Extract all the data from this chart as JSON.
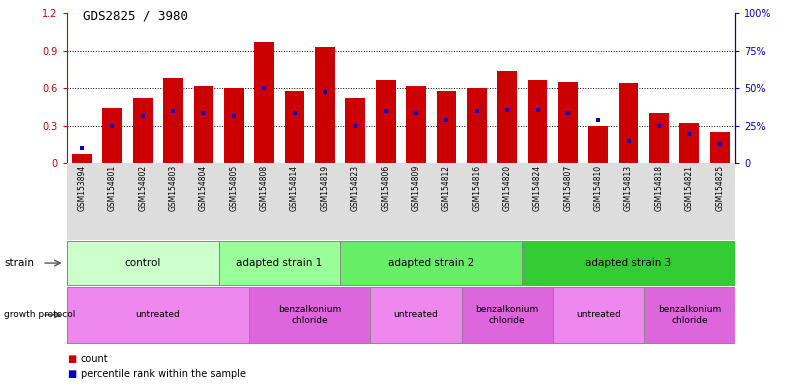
{
  "title": "GDS2825 / 3980",
  "samples": [
    "GSM153894",
    "GSM154801",
    "GSM154802",
    "GSM154803",
    "GSM154804",
    "GSM154805",
    "GSM154808",
    "GSM154814",
    "GSM154819",
    "GSM154823",
    "GSM154806",
    "GSM154809",
    "GSM154812",
    "GSM154816",
    "GSM154820",
    "GSM154824",
    "GSM154807",
    "GSM154810",
    "GSM154813",
    "GSM154818",
    "GSM154821",
    "GSM154825"
  ],
  "count_values": [
    0.07,
    0.44,
    0.52,
    0.68,
    0.62,
    0.6,
    0.97,
    0.58,
    0.93,
    0.52,
    0.67,
    0.62,
    0.58,
    0.6,
    0.74,
    0.67,
    0.65,
    0.3,
    0.64,
    0.4,
    0.32,
    0.25
  ],
  "percentile_values": [
    0.12,
    0.3,
    0.38,
    0.42,
    0.4,
    0.38,
    0.6,
    0.4,
    0.57,
    0.3,
    0.42,
    0.4,
    0.35,
    0.42,
    0.43,
    0.43,
    0.4,
    0.35,
    0.18,
    0.3,
    0.23,
    0.15
  ],
  "bar_color": "#cc0000",
  "percentile_color": "#0000cc",
  "ylim_left": [
    0,
    1.2
  ],
  "ylim_right": [
    0,
    100
  ],
  "yticks_left": [
    0,
    0.3,
    0.6,
    0.9,
    1.2
  ],
  "yticks_right": [
    0,
    25,
    50,
    75,
    100
  ],
  "strain_groups": [
    {
      "label": "control",
      "start": 0,
      "end": 5,
      "color": "#ccffcc"
    },
    {
      "label": "adapted strain 1",
      "start": 5,
      "end": 9,
      "color": "#99ff99"
    },
    {
      "label": "adapted strain 2",
      "start": 9,
      "end": 15,
      "color": "#66ee66"
    },
    {
      "label": "adapted strain 3",
      "start": 15,
      "end": 22,
      "color": "#33cc33"
    }
  ],
  "protocol_groups": [
    {
      "label": "untreated",
      "start": 0,
      "end": 6,
      "color": "#ee88ee"
    },
    {
      "label": "benzalkonium\nchloride",
      "start": 6,
      "end": 10,
      "color": "#dd66dd"
    },
    {
      "label": "untreated",
      "start": 10,
      "end": 13,
      "color": "#ee88ee"
    },
    {
      "label": "benzalkonium\nchloride",
      "start": 13,
      "end": 16,
      "color": "#dd66dd"
    },
    {
      "label": "untreated",
      "start": 16,
      "end": 19,
      "color": "#ee88ee"
    },
    {
      "label": "benzalkonium\nchloride",
      "start": 19,
      "end": 22,
      "color": "#dd66dd"
    }
  ],
  "bar_width": 0.65,
  "background_color": "#ffffff",
  "xlabel_bg_color": "#dddddd",
  "fig_width": 7.86,
  "fig_height": 3.84
}
